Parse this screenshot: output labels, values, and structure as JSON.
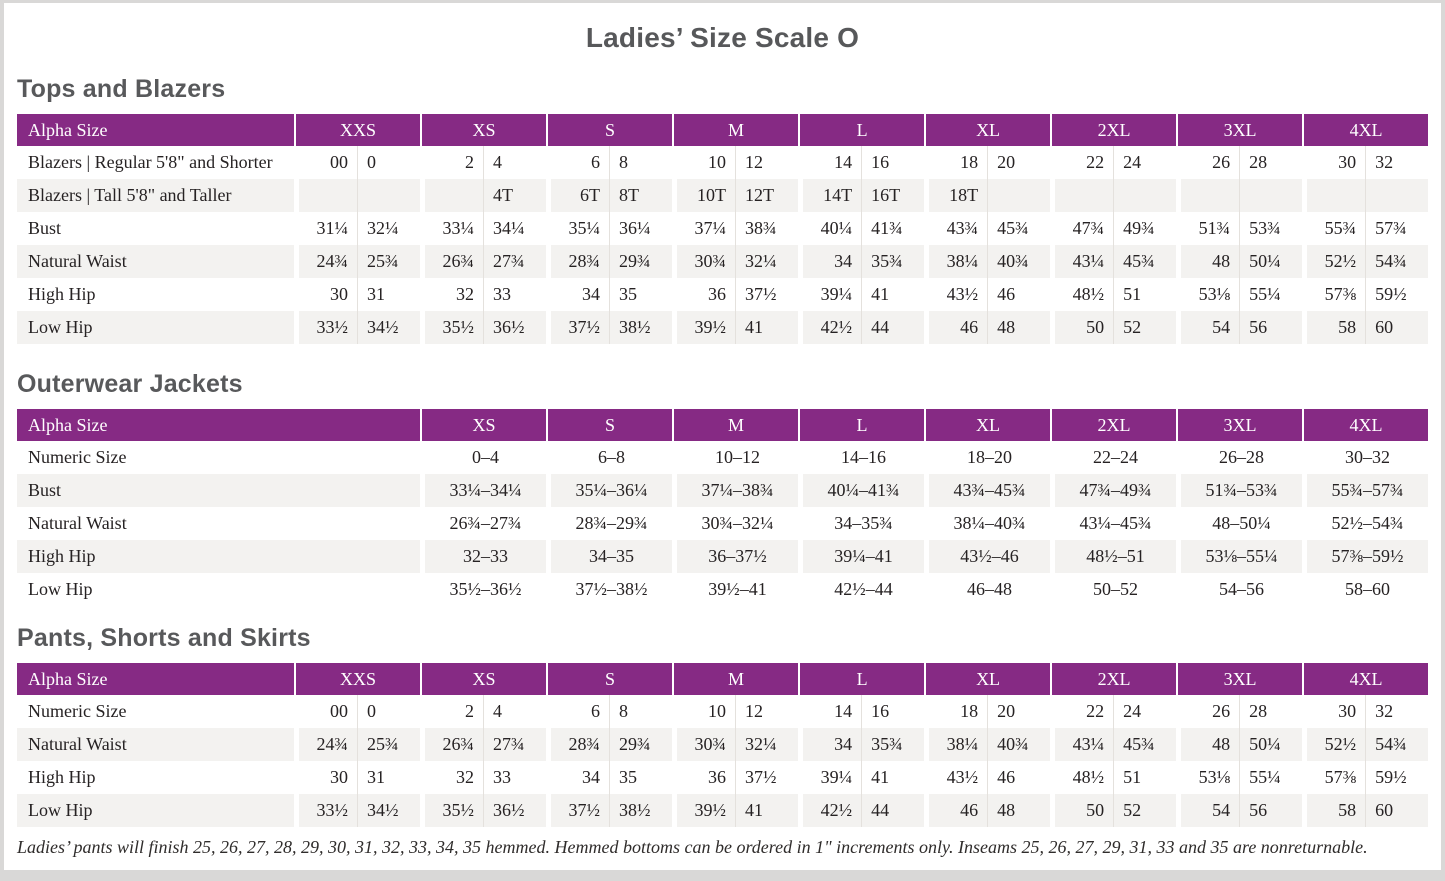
{
  "title": "Ladies’ Size Scale O",
  "footnote": "Ladies’ pants will finish 25, 26, 27, 28, 29, 30, 31, 32, 33, 34, 35 hemmed. Hemmed bottoms can be ordered in 1\" increments only. Inseams 25, 26, 27, 29, 31, 33 and 35 are nonreturnable.",
  "colors": {
    "header_purple": "#862a84",
    "row_stripe": "#f3f2f0",
    "heading_gray": "#58595b",
    "page_background": "#ffffff",
    "surround_gray": "#d9d8d7"
  },
  "sections": [
    {
      "heading": "Tops and Blazers",
      "header_label": "Alpha Size",
      "paired": true,
      "sizes": [
        "XXS",
        "XS",
        "S",
        "M",
        "L",
        "XL",
        "2XL",
        "3XL",
        "4XL"
      ],
      "rows": [
        {
          "label": "Blazers | Regular 5'8\" and Shorter",
          "values": [
            "00",
            "0",
            "2",
            "4",
            "6",
            "8",
            "10",
            "12",
            "14",
            "16",
            "18",
            "20",
            "22",
            "24",
            "26",
            "28",
            "30",
            "32"
          ]
        },
        {
          "label": "Blazers | Tall 5'8\" and Taller",
          "values": [
            "",
            "",
            "",
            "4T",
            "6T",
            "8T",
            "10T",
            "12T",
            "14T",
            "16T",
            "18T",
            "",
            "",
            "",
            "",
            "",
            "",
            ""
          ]
        },
        {
          "label": "Bust",
          "values": [
            "31¼",
            "32¼",
            "33¼",
            "34¼",
            "35¼",
            "36¼",
            "37¼",
            "38¾",
            "40¼",
            "41¾",
            "43¾",
            "45¾",
            "47¾",
            "49¾",
            "51¾",
            "53¾",
            "55¾",
            "57¾"
          ]
        },
        {
          "label": "Natural Waist",
          "values": [
            "24¾",
            "25¾",
            "26¾",
            "27¾",
            "28¾",
            "29¾",
            "30¾",
            "32¼",
            "34",
            "35¾",
            "38¼",
            "40¾",
            "43¼",
            "45¾",
            "48",
            "50¼",
            "52½",
            "54¾"
          ]
        },
        {
          "label": "High Hip",
          "values": [
            "30",
            "31",
            "32",
            "33",
            "34",
            "35",
            "36",
            "37½",
            "39¼",
            "41",
            "43½",
            "46",
            "48½",
            "51",
            "53⅛",
            "55¼",
            "57⅜",
            "59½"
          ]
        },
        {
          "label": "Low Hip",
          "values": [
            "33½",
            "34½",
            "35½",
            "36½",
            "37½",
            "38½",
            "39½",
            "41",
            "42½",
            "44",
            "46",
            "48",
            "50",
            "52",
            "54",
            "56",
            "58",
            "60"
          ]
        }
      ]
    },
    {
      "heading": "Outerwear Jackets",
      "header_label": "Alpha Size",
      "paired": false,
      "sizes": [
        "XS",
        "S",
        "M",
        "L",
        "XL",
        "2XL",
        "3XL",
        "4XL"
      ],
      "rows": [
        {
          "label": "Numeric Size",
          "values": [
            "0–4",
            "6–8",
            "10–12",
            "14–16",
            "18–20",
            "22–24",
            "26–28",
            "30–32"
          ]
        },
        {
          "label": "Bust",
          "values": [
            "33¼–34¼",
            "35¼–36¼",
            "37¼–38¾",
            "40¼–41¾",
            "43¾–45¾",
            "47¾–49¾",
            "51¾–53¾",
            "55¾–57¾"
          ]
        },
        {
          "label": "Natural Waist",
          "values": [
            "26¾–27¾",
            "28¾–29¾",
            "30¾–32¼",
            "34–35¾",
            "38¼–40¾",
            "43¼–45¾",
            "48–50¼",
            "52½–54¾"
          ]
        },
        {
          "label": "High Hip",
          "values": [
            "32–33",
            "34–35",
            "36–37½",
            "39¼–41",
            "43½–46",
            "48½–51",
            "53⅛–55¼",
            "57⅜–59½"
          ]
        },
        {
          "label": "Low Hip",
          "values": [
            "35½–36½",
            "37½–38½",
            "39½–41",
            "42½–44",
            "46–48",
            "50–52",
            "54–56",
            "58–60"
          ]
        }
      ]
    },
    {
      "heading": "Pants, Shorts and Skirts",
      "header_label": "Alpha Size",
      "paired": true,
      "sizes": [
        "XXS",
        "XS",
        "S",
        "M",
        "L",
        "XL",
        "2XL",
        "3XL",
        "4XL"
      ],
      "rows": [
        {
          "label": "Numeric Size",
          "values": [
            "00",
            "0",
            "2",
            "4",
            "6",
            "8",
            "10",
            "12",
            "14",
            "16",
            "18",
            "20",
            "22",
            "24",
            "26",
            "28",
            "30",
            "32"
          ]
        },
        {
          "label": "Natural Waist",
          "values": [
            "24¾",
            "25¾",
            "26¾",
            "27¾",
            "28¾",
            "29¾",
            "30¾",
            "32¼",
            "34",
            "35¾",
            "38¼",
            "40¾",
            "43¼",
            "45¾",
            "48",
            "50¼",
            "52½",
            "54¾"
          ]
        },
        {
          "label": "High Hip",
          "values": [
            "30",
            "31",
            "32",
            "33",
            "34",
            "35",
            "36",
            "37½",
            "39¼",
            "41",
            "43½",
            "46",
            "48½",
            "51",
            "53⅛",
            "55¼",
            "57⅜",
            "59½"
          ]
        },
        {
          "label": "Low Hip",
          "values": [
            "33½",
            "34½",
            "35½",
            "36½",
            "37½",
            "38½",
            "39½",
            "41",
            "42½",
            "44",
            "46",
            "48",
            "50",
            "52",
            "54",
            "56",
            "58",
            "60"
          ]
        }
      ]
    }
  ]
}
